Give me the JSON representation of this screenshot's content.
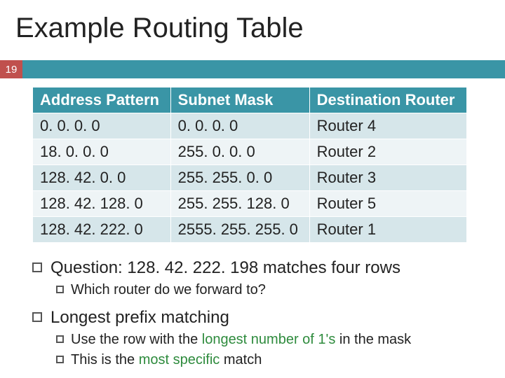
{
  "page_number": "19",
  "title": "Example Routing Table",
  "colors": {
    "band": "#3a95a6",
    "pagebox": "#c0504d",
    "th_bg": "#3a95a6",
    "row_odd": "#d6e6ea",
    "row_even": "#eef4f6",
    "highlight": "#2e8b3d",
    "text": "#222222"
  },
  "table": {
    "columns": [
      "Address Pattern",
      "Subnet Mask",
      "Destination Router"
    ],
    "rows": [
      [
        "0. 0. 0. 0",
        "0. 0. 0. 0",
        "Router 4"
      ],
      [
        "18. 0. 0. 0",
        "255. 0. 0. 0",
        "Router 2"
      ],
      [
        "128. 42. 0. 0",
        "255. 255. 0. 0",
        "Router 3"
      ],
      [
        "128. 42. 128. 0",
        "255. 255. 128. 0",
        "Router 5"
      ],
      [
        "128. 42. 222. 0",
        "2555. 255. 255. 0",
        "Router 1"
      ]
    ]
  },
  "bullets": {
    "q1": "Question: 128. 42. 222. 198 matches four rows",
    "q1a": "Which router do we forward to?",
    "q2": "Longest prefix matching",
    "q2a_pre": "Use the row with the ",
    "q2a_hl": "longest number of 1's",
    "q2a_post": " in the mask",
    "q2b_pre": "This is the ",
    "q2b_hl": "most specific",
    "q2b_post": " match"
  }
}
